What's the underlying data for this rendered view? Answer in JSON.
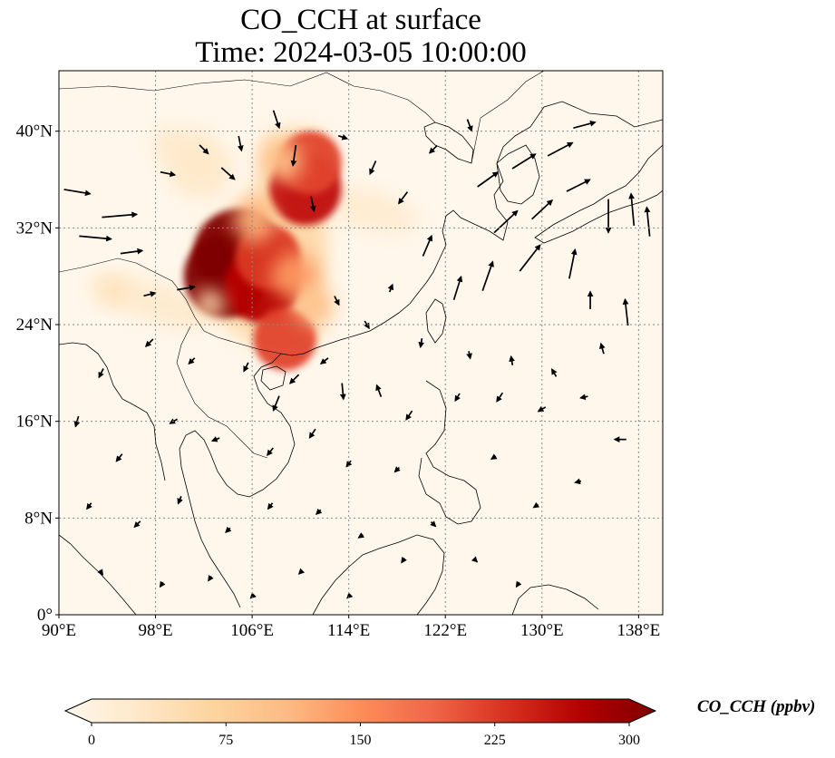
{
  "title": {
    "line1": "CO_CCH at surface",
    "line2": "Time: 2024-03-05 10:00:00"
  },
  "map": {
    "projection": "PlateCarree",
    "lon_range": [
      90,
      140
    ],
    "lat_range": [
      0,
      45
    ],
    "x_ticks": [
      {
        "value": 90,
        "label": "90°E"
      },
      {
        "value": 98,
        "label": "98°E"
      },
      {
        "value": 106,
        "label": "106°E"
      },
      {
        "value": 114,
        "label": "114°E"
      },
      {
        "value": 122,
        "label": "122°E"
      },
      {
        "value": 130,
        "label": "130°E"
      },
      {
        "value": 138,
        "label": "138°E"
      }
    ],
    "y_ticks": [
      {
        "value": 0,
        "label": "0°"
      },
      {
        "value": 8,
        "label": "8°N"
      },
      {
        "value": 16,
        "label": "16°N"
      },
      {
        "value": 24,
        "label": "24°N"
      },
      {
        "value": 32,
        "label": "32°N"
      },
      {
        "value": 40,
        "label": "40°N"
      }
    ],
    "gridlines": true,
    "field": "CO_CCH",
    "level": "surface",
    "colormap": "OrRd",
    "hotspots": [
      {
        "lon": 104.8,
        "lat": 29.9,
        "value": 320
      },
      {
        "lon": 103.8,
        "lat": 28.0,
        "value": 300
      },
      {
        "lon": 106.8,
        "lat": 27.2,
        "value": 260
      },
      {
        "lon": 107.3,
        "lat": 29.6,
        "value": 220
      },
      {
        "lon": 110.4,
        "lat": 35.2,
        "value": 250
      },
      {
        "lon": 110.8,
        "lat": 37.4,
        "value": 210
      },
      {
        "lon": 108.7,
        "lat": 22.8,
        "value": 210
      },
      {
        "lon": 109.5,
        "lat": 28.0,
        "value": 140
      },
      {
        "lon": 106.2,
        "lat": 32.6,
        "value": 120
      },
      {
        "lon": 108.5,
        "lat": 37.5,
        "value": 110
      },
      {
        "lon": 111.2,
        "lat": 25.5,
        "value": 100
      },
      {
        "lon": 102.5,
        "lat": 25.7,
        "value": 60
      },
      {
        "lon": 94.6,
        "lat": 26.8,
        "value": 50
      }
    ],
    "wind_vectors": [
      {
        "lon": 91.5,
        "lat": 35.0,
        "u": 1.8,
        "v": -0.3
      },
      {
        "lon": 95.0,
        "lat": 33.0,
        "u": 2.4,
        "v": 0.2
      },
      {
        "lon": 93.0,
        "lat": 31.2,
        "u": 2.2,
        "v": -0.2
      },
      {
        "lon": 96.0,
        "lat": 30.0,
        "u": 1.5,
        "v": 0.2
      },
      {
        "lon": 99.0,
        "lat": 36.5,
        "u": 1.0,
        "v": -0.2
      },
      {
        "lon": 97.5,
        "lat": 26.5,
        "u": 0.8,
        "v": 0.2
      },
      {
        "lon": 100.5,
        "lat": 27.0,
        "u": 1.2,
        "v": 0.2
      },
      {
        "lon": 102.0,
        "lat": 38.5,
        "u": 0.6,
        "v": -0.6
      },
      {
        "lon": 104.0,
        "lat": 36.5,
        "u": 0.9,
        "v": -0.8
      },
      {
        "lon": 105.0,
        "lat": 39.0,
        "u": 0.2,
        "v": -1.0
      },
      {
        "lon": 108.0,
        "lat": 41.0,
        "u": 0.4,
        "v": -1.2
      },
      {
        "lon": 109.5,
        "lat": 38.0,
        "u": -0.2,
        "v": -1.4
      },
      {
        "lon": 111.0,
        "lat": 34.0,
        "u": 0.2,
        "v": -1.0
      },
      {
        "lon": 113.5,
        "lat": 39.5,
        "u": 0.6,
        "v": -0.2
      },
      {
        "lon": 116.0,
        "lat": 37.0,
        "u": -0.4,
        "v": -0.9
      },
      {
        "lon": 118.5,
        "lat": 34.5,
        "u": -0.6,
        "v": -0.8
      },
      {
        "lon": 121.0,
        "lat": 38.5,
        "u": -0.5,
        "v": -0.5
      },
      {
        "lon": 124.0,
        "lat": 40.5,
        "u": 0.3,
        "v": -0.8
      },
      {
        "lon": 125.5,
        "lat": 36.0,
        "u": 1.4,
        "v": 1.0
      },
      {
        "lon": 128.5,
        "lat": 37.5,
        "u": 1.6,
        "v": 1.0
      },
      {
        "lon": 131.5,
        "lat": 38.5,
        "u": 1.7,
        "v": 0.9
      },
      {
        "lon": 133.5,
        "lat": 40.5,
        "u": 1.5,
        "v": 0.4
      },
      {
        "lon": 127.0,
        "lat": 32.5,
        "u": 1.6,
        "v": 1.5
      },
      {
        "lon": 130.0,
        "lat": 33.5,
        "u": 1.4,
        "v": 1.3
      },
      {
        "lon": 133.0,
        "lat": 35.5,
        "u": 1.6,
        "v": 0.8
      },
      {
        "lon": 135.5,
        "lat": 33.0,
        "u": 0.0,
        "v": -2.3
      },
      {
        "lon": 137.5,
        "lat": 33.5,
        "u": -0.2,
        "v": 2.2
      },
      {
        "lon": 138.8,
        "lat": 32.5,
        "u": -0.2,
        "v": 2.0
      },
      {
        "lon": 132.5,
        "lat": 29.0,
        "u": 0.4,
        "v": 2.0
      },
      {
        "lon": 129.0,
        "lat": 29.5,
        "u": 1.4,
        "v": 1.8
      },
      {
        "lon": 125.5,
        "lat": 28.0,
        "u": 0.7,
        "v": 2.0
      },
      {
        "lon": 120.5,
        "lat": 30.5,
        "u": 0.6,
        "v": 1.4
      },
      {
        "lon": 123.0,
        "lat": 27.0,
        "u": 0.5,
        "v": 1.6
      },
      {
        "lon": 117.5,
        "lat": 27.0,
        "u": 0.2,
        "v": 0.5
      },
      {
        "lon": 113.0,
        "lat": 26.0,
        "u": 0.3,
        "v": -0.6
      },
      {
        "lon": 115.5,
        "lat": 24.0,
        "u": 0.3,
        "v": -0.5
      },
      {
        "lon": 120.0,
        "lat": 22.5,
        "u": -0.1,
        "v": -0.6
      },
      {
        "lon": 124.0,
        "lat": 21.5,
        "u": 0.1,
        "v": -0.5
      },
      {
        "lon": 127.5,
        "lat": 21.0,
        "u": -0.1,
        "v": 0.6
      },
      {
        "lon": 131.0,
        "lat": 20.0,
        "u": -0.3,
        "v": 0.5
      },
      {
        "lon": 135.0,
        "lat": 22.0,
        "u": -0.2,
        "v": 0.7
      },
      {
        "lon": 137.0,
        "lat": 25.0,
        "u": -0.2,
        "v": 1.8
      },
      {
        "lon": 134.0,
        "lat": 26.0,
        "u": 0.0,
        "v": 1.2
      },
      {
        "lon": 112.0,
        "lat": 21.0,
        "u": -0.5,
        "v": -0.4
      },
      {
        "lon": 109.5,
        "lat": 19.5,
        "u": -0.6,
        "v": -0.6
      },
      {
        "lon": 108.0,
        "lat": 17.5,
        "u": -0.4,
        "v": -1.0
      },
      {
        "lon": 113.5,
        "lat": 18.5,
        "u": 0.1,
        "v": -1.1
      },
      {
        "lon": 116.5,
        "lat": 18.5,
        "u": -0.3,
        "v": 0.8
      },
      {
        "lon": 119.0,
        "lat": 16.5,
        "u": -0.4,
        "v": -0.6
      },
      {
        "lon": 123.0,
        "lat": 18.0,
        "u": -0.3,
        "v": -0.5
      },
      {
        "lon": 126.5,
        "lat": 18.0,
        "u": -0.4,
        "v": -0.6
      },
      {
        "lon": 130.0,
        "lat": 17.0,
        "u": -0.5,
        "v": -0.3
      },
      {
        "lon": 133.5,
        "lat": 18.0,
        "u": -0.5,
        "v": -0.1
      },
      {
        "lon": 136.5,
        "lat": 14.5,
        "u": -0.8,
        "v": 0.0
      },
      {
        "lon": 105.5,
        "lat": 20.5,
        "u": -0.3,
        "v": -0.6
      },
      {
        "lon": 101.0,
        "lat": 21.0,
        "u": -0.4,
        "v": -0.4
      },
      {
        "lon": 97.5,
        "lat": 22.5,
        "u": -0.5,
        "v": -0.5
      },
      {
        "lon": 93.5,
        "lat": 20.0,
        "u": -0.3,
        "v": -0.6
      },
      {
        "lon": 91.5,
        "lat": 16.0,
        "u": -0.2,
        "v": -0.7
      },
      {
        "lon": 95.0,
        "lat": 13.0,
        "u": -0.4,
        "v": -0.5
      },
      {
        "lon": 99.5,
        "lat": 16.0,
        "u": -0.5,
        "v": -0.3
      },
      {
        "lon": 103.0,
        "lat": 14.5,
        "u": -0.5,
        "v": -0.2
      },
      {
        "lon": 107.5,
        "lat": 13.5,
        "u": -0.4,
        "v": -0.5
      },
      {
        "lon": 111.0,
        "lat": 15.0,
        "u": -0.4,
        "v": -0.6
      },
      {
        "lon": 114.0,
        "lat": 12.5,
        "u": -0.3,
        "v": -0.4
      },
      {
        "lon": 118.0,
        "lat": 12.0,
        "u": -0.3,
        "v": -0.3
      },
      {
        "lon": 121.0,
        "lat": 7.5,
        "u": 0.3,
        "v": -0.3
      },
      {
        "lon": 126.0,
        "lat": 13.0,
        "u": -0.3,
        "v": -0.2
      },
      {
        "lon": 129.5,
        "lat": 9.0,
        "u": -0.3,
        "v": -0.2
      },
      {
        "lon": 133.0,
        "lat": 11.0,
        "u": -0.4,
        "v": -0.1
      },
      {
        "lon": 92.5,
        "lat": 9.0,
        "u": -0.3,
        "v": -0.4
      },
      {
        "lon": 96.5,
        "lat": 7.5,
        "u": -0.4,
        "v": -0.4
      },
      {
        "lon": 100.0,
        "lat": 9.5,
        "u": -0.2,
        "v": -0.5
      },
      {
        "lon": 104.0,
        "lat": 7.0,
        "u": -0.3,
        "v": -0.3
      },
      {
        "lon": 107.5,
        "lat": 9.0,
        "u": -0.3,
        "v": -0.4
      },
      {
        "lon": 111.5,
        "lat": 8.5,
        "u": -0.3,
        "v": -0.3
      },
      {
        "lon": 115.0,
        "lat": 6.5,
        "u": -0.3,
        "v": -0.2
      },
      {
        "lon": 118.5,
        "lat": 4.5,
        "u": -0.2,
        "v": -0.3
      },
      {
        "lon": 124.5,
        "lat": 4.5,
        "u": 0.2,
        "v": -0.2
      },
      {
        "lon": 128.0,
        "lat": 2.5,
        "u": -0.2,
        "v": -0.3
      },
      {
        "lon": 93.5,
        "lat": 3.5,
        "u": 0.2,
        "v": -0.3
      },
      {
        "lon": 98.5,
        "lat": 2.5,
        "u": -0.2,
        "v": -0.3
      },
      {
        "lon": 102.5,
        "lat": 3.0,
        "u": -0.2,
        "v": -0.3
      },
      {
        "lon": 110.0,
        "lat": 3.5,
        "u": -0.2,
        "v": -0.2
      },
      {
        "lon": 106.0,
        "lat": 1.5,
        "u": -0.2,
        "v": -0.2
      },
      {
        "lon": 114.0,
        "lat": 1.5,
        "u": -0.2,
        "v": -0.2
      }
    ]
  },
  "colorbar": {
    "label": "CO_CCH (ppbv)",
    "min": 0,
    "max": 300,
    "extend": "both",
    "ticks": [
      "0",
      "75",
      "150",
      "225",
      "300"
    ],
    "tick_values": [
      0,
      75,
      150,
      225,
      300
    ],
    "colors": [
      "#fff7ec",
      "#fee8c8",
      "#fdd49e",
      "#fdbb84",
      "#fc8d59",
      "#ef6548",
      "#d7301f",
      "#b30000",
      "#7f0000"
    ]
  },
  "colors": {
    "ocean_background": "#fff7ec",
    "coastline": "#000000",
    "gridline": "#8a8a8a",
    "wind_arrow": "#000000"
  }
}
